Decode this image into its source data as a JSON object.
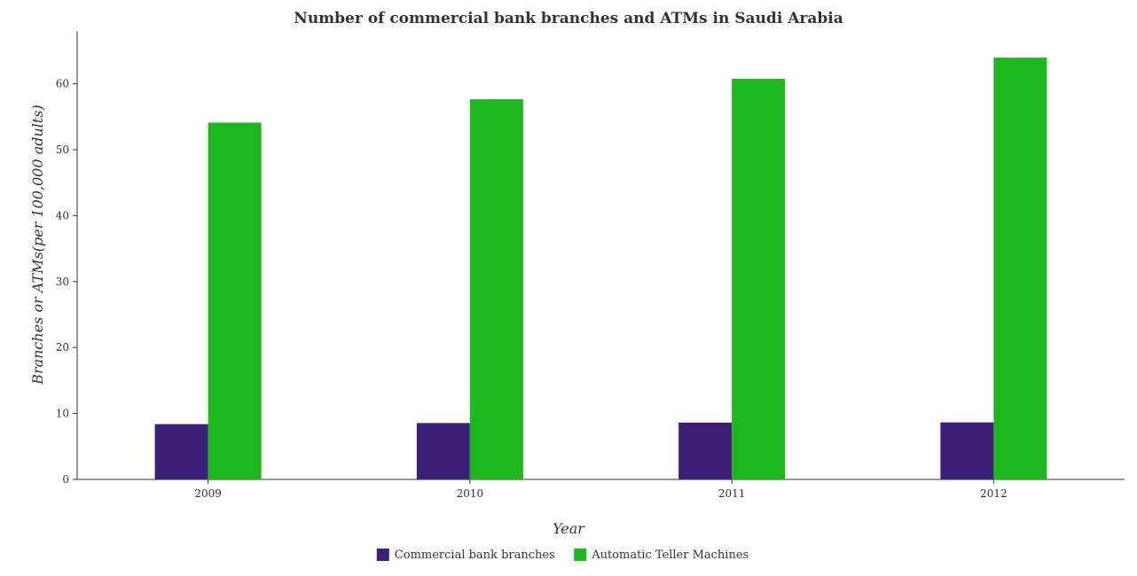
{
  "chart_data": {
    "type": "bar",
    "title": "Number of commercial bank branches and ATMs in Saudi Arabia",
    "xlabel": "Year",
    "ylabel": "Branches or ATMs(per 100,000 adults)",
    "categories": [
      "2009",
      "2010",
      "2011",
      "2012"
    ],
    "ylim": [
      0,
      68
    ],
    "yticks": [
      0,
      10,
      20,
      30,
      40,
      50,
      60
    ],
    "grid": false,
    "legend_position": "bottom-center",
    "series": [
      {
        "name": "Commercial bank branches",
        "color": "#3b1f7a",
        "values": [
          8.38,
          8.55,
          8.62,
          8.65
        ]
      },
      {
        "name": "Automatic Teller Machines",
        "color": "#1db81d",
        "values": [
          54.1,
          57.66,
          60.74,
          63.96
        ]
      }
    ]
  }
}
